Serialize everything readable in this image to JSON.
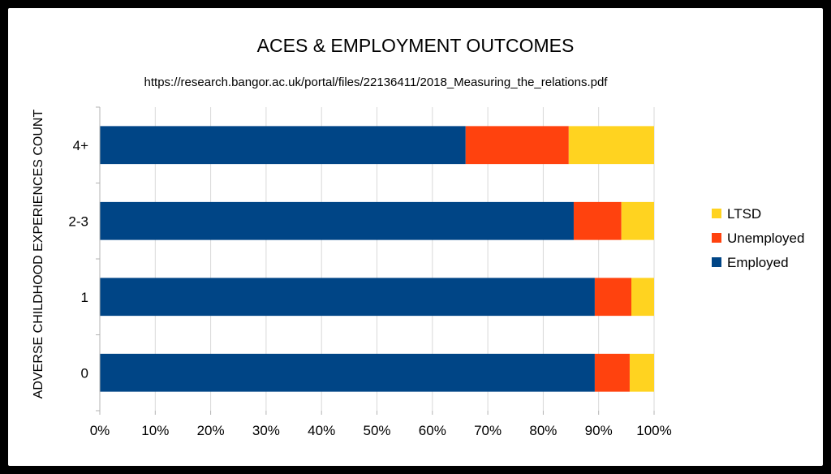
{
  "chart_data": {
    "type": "bar",
    "orientation": "horizontal",
    "stacked": true,
    "percent": true,
    "title": "ACES & EMPLOYMENT OUTCOMES",
    "subtitle": "https://research.bangor.ac.uk/portal/files/22136411/2018_Measuring_the_relations.pdf",
    "xlabel": "",
    "ylabel": "ADVERSE CHILDHOOD EXPERIENCES COUNT",
    "categories": [
      "0",
      "1",
      "2-3",
      "4+"
    ],
    "series": [
      {
        "name": "Employed",
        "color": "#004586",
        "values": [
          89.3,
          89.3,
          85.5,
          66.0
        ]
      },
      {
        "name": "Unemployed",
        "color": "#ff420e",
        "values": [
          6.3,
          6.6,
          8.6,
          18.6
        ]
      },
      {
        "name": "LTSD",
        "color": "#ffd320",
        "values": [
          4.4,
          4.1,
          5.9,
          15.4
        ]
      }
    ],
    "xlim": [
      0,
      100
    ],
    "xticks": [
      "0%",
      "10%",
      "20%",
      "30%",
      "40%",
      "50%",
      "60%",
      "70%",
      "80%",
      "90%",
      "100%"
    ],
    "grid": true,
    "legend_position": "right",
    "legend_order": [
      "LTSD",
      "Unemployed",
      "Employed"
    ]
  }
}
